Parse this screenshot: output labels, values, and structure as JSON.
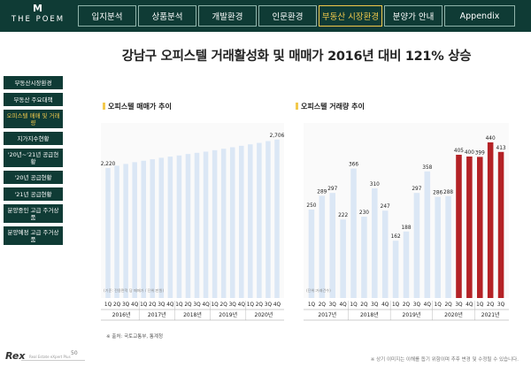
{
  "brand": {
    "logo_mark": "M",
    "logo_name": "THE POEM"
  },
  "nav": {
    "tabs": [
      {
        "label": "입지분석",
        "active": false
      },
      {
        "label": "상품분석",
        "active": false
      },
      {
        "label": "개발환경",
        "active": false
      },
      {
        "label": "인문환경",
        "active": false
      },
      {
        "label": "부동산 시장환경",
        "active": true
      },
      {
        "label": "분양가 안내",
        "active": false
      },
      {
        "label": "Appendix",
        "active": false
      }
    ]
  },
  "sidebar": {
    "items": [
      {
        "label": "부동산시장환경",
        "active": false
      },
      {
        "label": "부동산 주요대책",
        "active": false
      },
      {
        "label": "오피스텔 매매 및 거래량",
        "active": true
      },
      {
        "label": "지가지수현황",
        "active": false
      },
      {
        "label": "'20년~'21년 공급현황",
        "active": false
      },
      {
        "label": "'20년 공급현황",
        "active": false
      },
      {
        "label": "'21년 공급현황",
        "active": false
      },
      {
        "label": "분양중인 고급 주거상품",
        "active": false
      },
      {
        "label": "분양예정 고급 주거상품",
        "active": false
      }
    ]
  },
  "page": {
    "title": "강남구 오피스텔 거래활성화 및 매매가 2016년 대비 121% 상승",
    "source_note": "※ 출처: 국토교통부, 통계청",
    "disclaimer": "※ 상기 이미지는 이해를 돕기 위함이며 추후 변경 및 수정될 수 있습니다.",
    "page_number": "50",
    "footer_brand": "Rex",
    "footer_brand_sub": "Real Estate eXpert Plus"
  },
  "colors": {
    "dark": "#0f3b35",
    "accent": "#f2c94c",
    "bar": "#dbe7f5",
    "highlight": "#b42226"
  },
  "chart_data": [
    {
      "type": "bar",
      "title": "오피스텔 매매가 추이",
      "unit_label": "(기준: 전용면적 당 매매가 / 단위:만원)",
      "categories": [
        "1Q",
        "2Q",
        "3Q",
        "4Q",
        "1Q",
        "2Q",
        "3Q",
        "4Q",
        "1Q",
        "2Q",
        "3Q",
        "4Q",
        "1Q",
        "2Q",
        "3Q",
        "4Q",
        "1Q",
        "2Q",
        "3Q",
        "4Q"
      ],
      "year_groups": [
        {
          "label": "2016년",
          "start": 0,
          "count": 4
        },
        {
          "label": "2017년",
          "start": 4,
          "count": 4
        },
        {
          "label": "2018년",
          "start": 8,
          "count": 4
        },
        {
          "label": "2019년",
          "start": 12,
          "count": 4
        },
        {
          "label": "2020년",
          "start": 16,
          "count": 4
        }
      ],
      "values": [
        2220,
        2260,
        2290,
        2320,
        2345,
        2370,
        2395,
        2415,
        2435,
        2460,
        2480,
        2500,
        2525,
        2550,
        2575,
        2600,
        2625,
        2650,
        2680,
        2706
      ],
      "labeled": {
        "first": "2,220",
        "last": "2,706"
      },
      "ylim": [
        0,
        2900
      ]
    },
    {
      "type": "bar",
      "title": "오피스텔 거래량 추이",
      "unit_label": "(단위:거래건수)",
      "categories": [
        "1Q",
        "2Q",
        "3Q",
        "4Q",
        "1Q",
        "2Q",
        "3Q",
        "4Q",
        "1Q",
        "2Q",
        "3Q",
        "4Q",
        "1Q",
        "2Q",
        "3Q",
        "4Q",
        "1Q",
        "2Q",
        "3Q"
      ],
      "year_groups": [
        {
          "label": "2017년",
          "start": 0,
          "count": 4
        },
        {
          "label": "2018년",
          "start": 4,
          "count": 4
        },
        {
          "label": "2019년",
          "start": 8,
          "count": 4
        },
        {
          "label": "2020년",
          "start": 12,
          "count": 4
        },
        {
          "label": "2021년",
          "start": 16,
          "count": 3
        }
      ],
      "values": [
        250,
        289,
        297,
        222,
        366,
        230,
        310,
        247,
        162,
        188,
        297,
        358,
        286,
        288,
        405,
        400,
        399,
        440,
        413
      ],
      "highlight_from_index": 14,
      "ylim": [
        0,
        480
      ]
    }
  ]
}
